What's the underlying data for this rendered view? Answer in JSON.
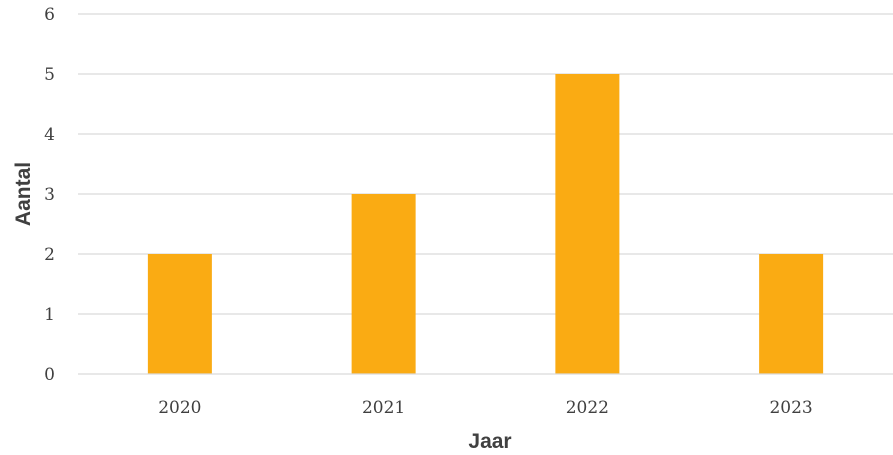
{
  "chart_data": {
    "type": "bar",
    "categories": [
      "2020",
      "2021",
      "2022",
      "2023"
    ],
    "series": [
      {
        "values": [
          2,
          3,
          5,
          2
        ]
      }
    ],
    "xlabel": "Jaar",
    "ylabel": "Aantal",
    "ylim": [
      0,
      6
    ],
    "yticks": [
      "0",
      "1",
      "2",
      "3",
      "4",
      "5",
      "6"
    ],
    "grid": true,
    "legend": "none",
    "bar_color": "#FAAB13",
    "gridline_color": "#D9D9D9",
    "text_color": "#404040"
  }
}
